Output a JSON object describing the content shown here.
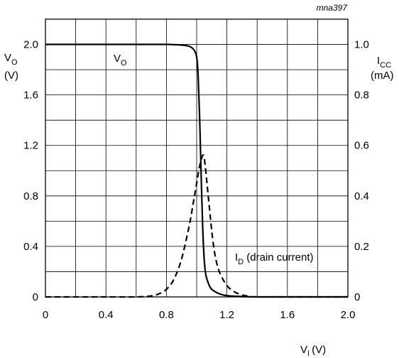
{
  "chart_data": {
    "type": "line",
    "code_label": "mna397",
    "x_axis": {
      "label_main": "V",
      "label_sub": "I",
      "label_unit": "(V)",
      "range": [
        0,
        2.0
      ],
      "ticks": [
        "0",
        "0.4",
        "0.8",
        "1.2",
        "1.6",
        "2.0"
      ]
    },
    "y_left": {
      "label_main": "V",
      "label_sub": "O",
      "label_unit": "(V)",
      "range": [
        0,
        2.2
      ],
      "ticks": [
        "0",
        "0.4",
        "0.8",
        "1.2",
        "1.6",
        "2.0"
      ]
    },
    "y_right": {
      "label_main": "I",
      "label_sub": "CC",
      "label_unit": "(mA)",
      "range": [
        0,
        1.1
      ],
      "ticks": [
        "0",
        "0.2",
        "0.4",
        "0.6",
        "0.8",
        "1.0"
      ]
    },
    "grid": true,
    "series": [
      {
        "name": "VO",
        "label_main": "V",
        "label_sub": "O",
        "axis": "left",
        "style": "solid",
        "x": [
          0,
          0.2,
          0.4,
          0.6,
          0.8,
          0.9,
          0.95,
          0.98,
          1.0,
          1.01,
          1.02,
          1.03,
          1.04,
          1.05,
          1.06,
          1.08,
          1.1,
          1.15,
          1.2,
          1.3,
          1.4,
          1.6,
          1.8,
          2.0
        ],
        "y": [
          2.0,
          2.0,
          2.0,
          2.0,
          2.0,
          1.995,
          1.985,
          1.96,
          1.9,
          1.75,
          1.4,
          0.95,
          0.55,
          0.3,
          0.18,
          0.1,
          0.06,
          0.025,
          0.01,
          0.003,
          0.0,
          0.0,
          0.0,
          0.0
        ]
      },
      {
        "name": "ID (drain current)",
        "label_main": "I",
        "label_sub": "D",
        "label_rest": " (drain current)",
        "axis": "right",
        "style": "dashed",
        "x": [
          0,
          0.2,
          0.4,
          0.6,
          0.7,
          0.75,
          0.8,
          0.85,
          0.9,
          0.95,
          0.98,
          1.0,
          1.02,
          1.04,
          1.05,
          1.06,
          1.08,
          1.1,
          1.12,
          1.15,
          1.2,
          1.25,
          1.3,
          1.35,
          1.4,
          1.6,
          2.0
        ],
        "y": [
          0,
          0,
          0,
          0,
          0.004,
          0.012,
          0.03,
          0.07,
          0.15,
          0.28,
          0.38,
          0.45,
          0.52,
          0.56,
          0.55,
          0.5,
          0.38,
          0.26,
          0.17,
          0.1,
          0.045,
          0.02,
          0.008,
          0.002,
          0,
          0,
          0
        ]
      }
    ]
  }
}
